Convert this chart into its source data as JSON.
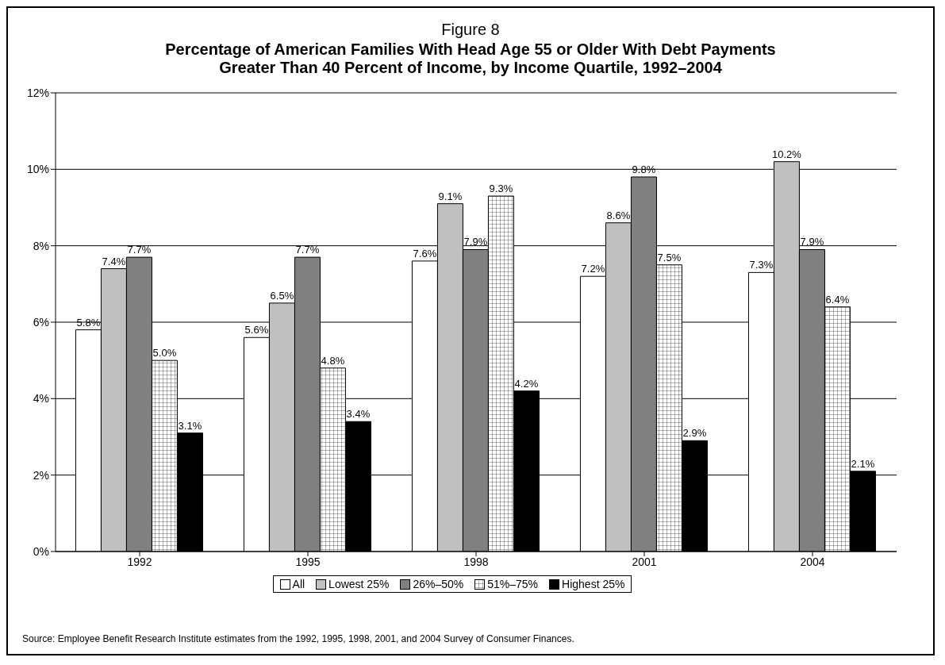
{
  "chart_data": {
    "type": "bar",
    "title": "Figure 8",
    "subtitle": "Percentage of American Families With Head Age 55 or Older With Debt Payments Greater Than 40 Percent of Income, by Income Quartile, 1992–2004",
    "categories": [
      "1992",
      "1995",
      "1998",
      "2001",
      "2004"
    ],
    "series": [
      {
        "name": "All",
        "color": "#ffffff",
        "values": [
          5.8,
          5.6,
          7.6,
          7.2,
          7.3
        ],
        "value_labels": [
          "5.8%",
          "5.6%",
          "7.6%",
          "7.2%",
          "7.3%"
        ]
      },
      {
        "name": "Lowest 25%",
        "color": "#c0c0c0",
        "values": [
          7.4,
          6.5,
          9.1,
          8.6,
          10.2
        ],
        "value_labels": [
          "7.4%",
          "6.5%",
          "9.1%",
          "8.6%",
          "10.2%"
        ]
      },
      {
        "name": "26%–50%",
        "color": "#808080",
        "values": [
          7.7,
          7.7,
          7.9,
          9.8,
          7.9
        ],
        "value_labels": [
          "7.7%",
          "7.7%",
          "7.9%",
          "9.8%",
          "7.9%"
        ]
      },
      {
        "name": "51%–75%",
        "color": "#000000",
        "values": [
          5.0,
          4.8,
          9.3,
          7.5,
          6.4
        ],
        "value_labels": [
          "5.0%",
          "4.8%",
          "9.3%",
          "7.5%",
          "6.4%"
        ]
      },
      {
        "name": "Highest 25%",
        "color": "#000000",
        "values": [
          3.1,
          3.4,
          4.2,
          2.9,
          2.1
        ],
        "value_labels": [
          "3.1%",
          "3.4%",
          "4.2%",
          "2.9%",
          "2.1%"
        ]
      }
    ],
    "ylim": [
      0,
      12
    ],
    "yticks": [
      {
        "value": 0,
        "label": "0%"
      },
      {
        "value": 2,
        "label": "2%"
      },
      {
        "value": 4,
        "label": "4%"
      },
      {
        "value": 6,
        "label": "6%"
      },
      {
        "value": 8,
        "label": "8%"
      },
      {
        "value": 10,
        "label": "10%"
      },
      {
        "value": 12,
        "label": "12%"
      }
    ],
    "grid": "y",
    "legend": "bottom",
    "annotations": [
      "Source: Employee Benefit Research Institute estimates from the 1992, 1995, 1998, 2001, and 2004 Survey of Consumer Finances."
    ]
  }
}
